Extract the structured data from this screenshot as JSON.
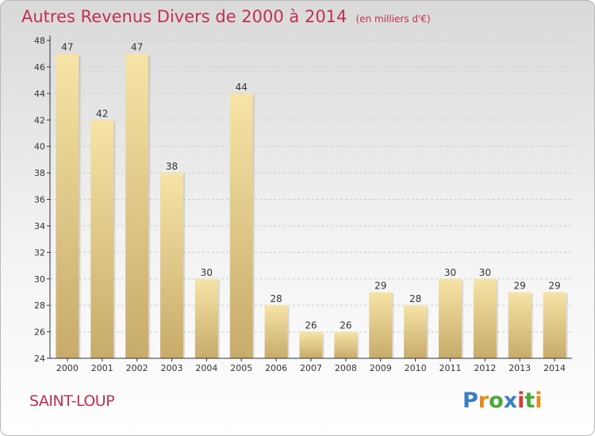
{
  "title": "Autres Revenus Divers de 2000 à 2014",
  "subtitle": "(en milliers d'€)",
  "commune": "SAINT-LOUP",
  "brand": "Proxiti",
  "colors": {
    "title": "#c0304f",
    "bar_light": "#f6e4a6",
    "bar_dark": "#c7ab6a",
    "axis": "#333333",
    "grid": "#cccccc",
    "brand_letters": [
      "#3a7fc4",
      "#e88a1a",
      "#49a83b",
      "#3a7fc4",
      "#d63a3a",
      "#49a83b",
      "#e88a1a"
    ]
  },
  "chart_data": {
    "type": "bar",
    "categories": [
      "2000",
      "2001",
      "2002",
      "2003",
      "2004",
      "2005",
      "2006",
      "2007",
      "2008",
      "2009",
      "2010",
      "2011",
      "2012",
      "2013",
      "2014"
    ],
    "values": [
      47,
      42,
      47,
      38,
      30,
      44,
      28,
      26,
      26,
      29,
      28,
      30,
      30,
      29,
      29
    ],
    "ylim": [
      24,
      48
    ],
    "yticks": [
      24,
      26,
      28,
      30,
      32,
      34,
      36,
      38,
      40,
      42,
      44,
      46,
      48
    ],
    "grid": "horizontal",
    "data_labels": true
  }
}
